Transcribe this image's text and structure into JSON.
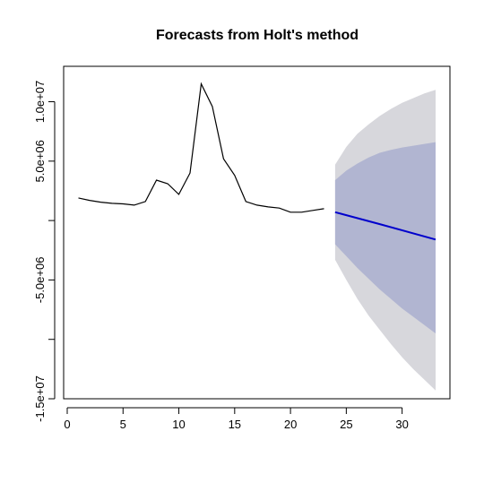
{
  "chart_data": {
    "type": "line",
    "title": "Forecasts from Holt's method",
    "xlabel": "",
    "ylabel": "",
    "xlim": [
      0,
      35
    ],
    "ylim": [
      -15000000,
      12000000
    ],
    "grid": false,
    "legend": "none",
    "x_ticks": [
      {
        "value": 0,
        "label": "0"
      },
      {
        "value": 5,
        "label": "5"
      },
      {
        "value": 10,
        "label": "10"
      },
      {
        "value": 15,
        "label": "15"
      },
      {
        "value": 20,
        "label": "20"
      },
      {
        "value": 25,
        "label": "25"
      },
      {
        "value": 30,
        "label": "30"
      }
    ],
    "y_ticks": [
      {
        "value": -15000000,
        "label": "-1.5e+07"
      },
      {
        "value": -10000000,
        "label": ""
      },
      {
        "value": -5000000,
        "label": "-5.0e+06"
      },
      {
        "value": 0,
        "label": ""
      },
      {
        "value": 5000000,
        "label": "5.0e+06"
      },
      {
        "value": 10000000,
        "label": "1.0e+07"
      }
    ],
    "series": [
      {
        "type": "line",
        "color": "#000000",
        "points": [
          [
            1,
            1900000
          ],
          [
            2,
            1700000
          ],
          [
            3,
            1550000
          ],
          [
            4,
            1450000
          ],
          [
            5,
            1400000
          ],
          [
            6,
            1300000
          ],
          [
            7,
            1600000
          ],
          [
            8,
            3400000
          ],
          [
            9,
            3100000
          ],
          [
            10,
            2200000
          ],
          [
            11,
            4000000
          ],
          [
            12,
            11500000
          ],
          [
            13,
            9600000
          ],
          [
            14,
            5200000
          ],
          [
            15,
            3800000
          ],
          [
            16,
            1600000
          ],
          [
            17,
            1300000
          ],
          [
            18,
            1150000
          ],
          [
            19,
            1050000
          ],
          [
            20,
            700000
          ],
          [
            21,
            700000
          ],
          [
            22,
            850000
          ],
          [
            23,
            1000000
          ]
        ]
      },
      {
        "type": "line",
        "color": "#0000cc",
        "points": [
          [
            24,
            700000
          ],
          [
            28,
            -300000
          ],
          [
            33,
            -1600000
          ]
        ]
      },
      {
        "type": "band",
        "color": "#d7d7dc",
        "x": [
          24,
          25,
          26,
          27,
          28,
          29,
          30,
          31,
          32,
          33
        ],
        "upper": [
          4700000,
          6200000,
          7300000,
          8100000,
          8800000,
          9400000,
          9900000,
          10300000,
          10700000,
          11000000
        ],
        "lower": [
          -3300000,
          -5000000,
          -6600000,
          -8000000,
          -9200000,
          -10400000,
          -11500000,
          -12500000,
          -13400000,
          -14300000
        ]
      },
      {
        "type": "band",
        "color": "#b1b5d1",
        "x": [
          24,
          25,
          26,
          27,
          28,
          29,
          30,
          31,
          32,
          33
        ],
        "upper": [
          3400000,
          4200000,
          4800000,
          5300000,
          5700000,
          5950000,
          6150000,
          6300000,
          6450000,
          6600000
        ],
        "lower": [
          -2000000,
          -3000000,
          -4000000,
          -4900000,
          -5800000,
          -6600000,
          -7400000,
          -8100000,
          -8800000,
          -9500000
        ]
      }
    ]
  }
}
